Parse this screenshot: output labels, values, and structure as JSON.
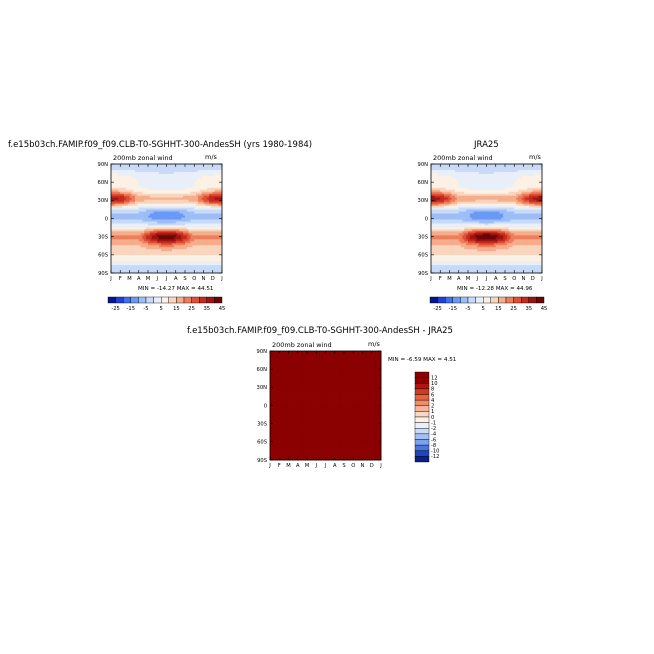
{
  "panels": [
    {
      "title": "f.e15b03ch.FAMIP.f09_f09.CLB-T0-SGHHT-300-AndesSH (yrs 1980-1984)",
      "left_label": "200mb zonal wind",
      "right_label": "m/s",
      "stats": "MIN = -14.27 MAX =  44.51"
    },
    {
      "title": "JRA25",
      "left_label": "200mb zonal wind",
      "right_label": "m/s",
      "stats": "MIN = -12.28 MAX =  44.96"
    },
    {
      "title": "f.e15b03ch.FAMIP.f09_f09.CLB-T0-SGHHT-300-AndesSH - JRA25",
      "left_label": "200mb zonal wind",
      "right_label": "m/s",
      "stats": "MIN =  -6.59 MAX =   4.51"
    }
  ],
  "chart_data": [
    {
      "type": "heatmap",
      "title": "f.e15b03ch.FAMIP.f09_f09.CLB-T0-SGHHT-300-AndesSH (yrs 1980-1984)",
      "x_tick_labels": [
        "J",
        "F",
        "M",
        "A",
        "M",
        "J",
        "J",
        "A",
        "S",
        "O",
        "N",
        "D",
        "J"
      ],
      "y_tick_labels": [
        "90N",
        "60N",
        "30N",
        "0",
        "30S",
        "60S",
        "90S"
      ],
      "xlabel": "",
      "ylabel": "",
      "units": "m/s",
      "min": -14.27,
      "max": 44.51,
      "colorbar_labels": [
        "-25",
        "-15",
        "-5",
        "5",
        "15",
        "25",
        "35",
        "45"
      ],
      "colorbar_orientation": "horizontal"
    },
    {
      "type": "heatmap",
      "title": "JRA25",
      "x_tick_labels": [
        "J",
        "F",
        "M",
        "A",
        "M",
        "J",
        "J",
        "A",
        "S",
        "O",
        "N",
        "D",
        "J"
      ],
      "y_tick_labels": [
        "90N",
        "60N",
        "30N",
        "0",
        "30S",
        "60S",
        "90S"
      ],
      "xlabel": "",
      "ylabel": "",
      "units": "m/s",
      "min": -12.28,
      "max": 44.96,
      "colorbar_labels": [
        "-25",
        "-15",
        "-5",
        "5",
        "15",
        "25",
        "35",
        "45"
      ],
      "colorbar_orientation": "horizontal"
    },
    {
      "type": "heatmap",
      "title": "f.e15b03ch.FAMIP.f09_f09.CLB-T0-SGHHT-300-AndesSH - JRA25",
      "x_tick_labels": [
        "J",
        "F",
        "M",
        "A",
        "M",
        "J",
        "J",
        "A",
        "S",
        "O",
        "N",
        "D",
        "J"
      ],
      "y_tick_labels": [
        "90N",
        "60N",
        "30N",
        "0",
        "30S",
        "60S",
        "90S"
      ],
      "xlabel": "",
      "ylabel": "",
      "units": "m/s",
      "min": -6.59,
      "max": 4.51,
      "colorbar_labels": [
        "12",
        "10",
        "8",
        "6",
        "4",
        "2",
        "1",
        "0",
        "-1",
        "-2",
        "-4",
        "-6",
        "-8",
        "-10",
        "-12"
      ],
      "colorbar_orientation": "vertical"
    }
  ],
  "colors": {
    "abs_scale": [
      "#08148c",
      "#1f3fd6",
      "#3d6ff2",
      "#6a98f5",
      "#9dbdf6",
      "#c7daf8",
      "#e8eff9",
      "#fbf1e5",
      "#f9d5bd",
      "#f5ad8c",
      "#ec7e5c",
      "#de4f34",
      "#c42a1e",
      "#9a1411",
      "#6b0606"
    ],
    "diff_scale": [
      "#8b0000",
      "#b3150d",
      "#d13a20",
      "#e6633d",
      "#f08d67",
      "#f6b598",
      "#fad8c6",
      "#fdf0e8",
      "#e9f0fb",
      "#c9daf7",
      "#a3c0f4",
      "#7aa2ef",
      "#4a74e0",
      "#1f44bf",
      "#081f8c"
    ]
  }
}
